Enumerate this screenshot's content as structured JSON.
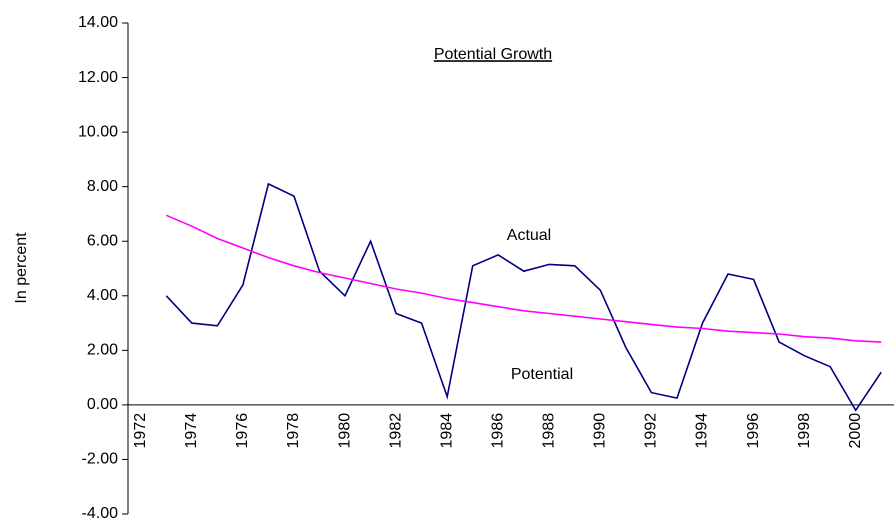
{
  "chart_data": {
    "type": "line",
    "title": "Potential Growth",
    "y_label": "In percent",
    "categories": [
      "1972",
      null,
      "1974",
      null,
      "1976",
      null,
      "1978",
      null,
      "1980",
      null,
      "1982",
      null,
      "1984",
      null,
      "1986",
      null,
      "1988",
      null,
      "1990",
      null,
      "1992",
      null,
      "1994",
      null,
      "1996",
      null,
      "1998",
      null,
      "2000",
      null
    ],
    "series": [
      {
        "name": "Actual",
        "color": "#000080",
        "values": [
          null,
          4.0,
          3.0,
          2.9,
          4.4,
          8.1,
          7.65,
          4.9,
          4.0,
          6.0,
          3.35,
          3.0,
          0.3,
          5.1,
          5.5,
          4.9,
          5.15,
          5.1,
          4.2,
          2.1,
          0.45,
          0.25,
          3.0,
          4.8,
          4.6,
          2.3,
          1.8,
          1.4,
          -0.2,
          1.2
        ]
      },
      {
        "name": "Potential",
        "color": "#ff00ff",
        "values": [
          null,
          6.95,
          6.55,
          6.1,
          5.75,
          5.4,
          5.1,
          4.85,
          4.65,
          4.45,
          4.25,
          4.1,
          3.9,
          3.75,
          3.6,
          3.45,
          3.35,
          3.25,
          3.15,
          3.05,
          2.95,
          2.85,
          2.8,
          2.7,
          2.65,
          2.6,
          2.5,
          2.45,
          2.35,
          2.3
        ]
      }
    ],
    "ylim": [
      -4,
      14
    ],
    "yticks": [
      {
        "value": -4,
        "label": "-4.00"
      },
      {
        "value": -2,
        "label": "-2.00"
      },
      {
        "value": 0,
        "label": "0.00"
      },
      {
        "value": 2,
        "label": "2.00"
      },
      {
        "value": 4,
        "label": "4.00"
      },
      {
        "value": 6,
        "label": "6.00"
      },
      {
        "value": 8,
        "label": "8.00"
      },
      {
        "value": 10,
        "label": "10.00"
      },
      {
        "value": 12,
        "label": "12.00"
      },
      {
        "value": 14,
        "label": "14.00"
      }
    ],
    "grid": false
  }
}
